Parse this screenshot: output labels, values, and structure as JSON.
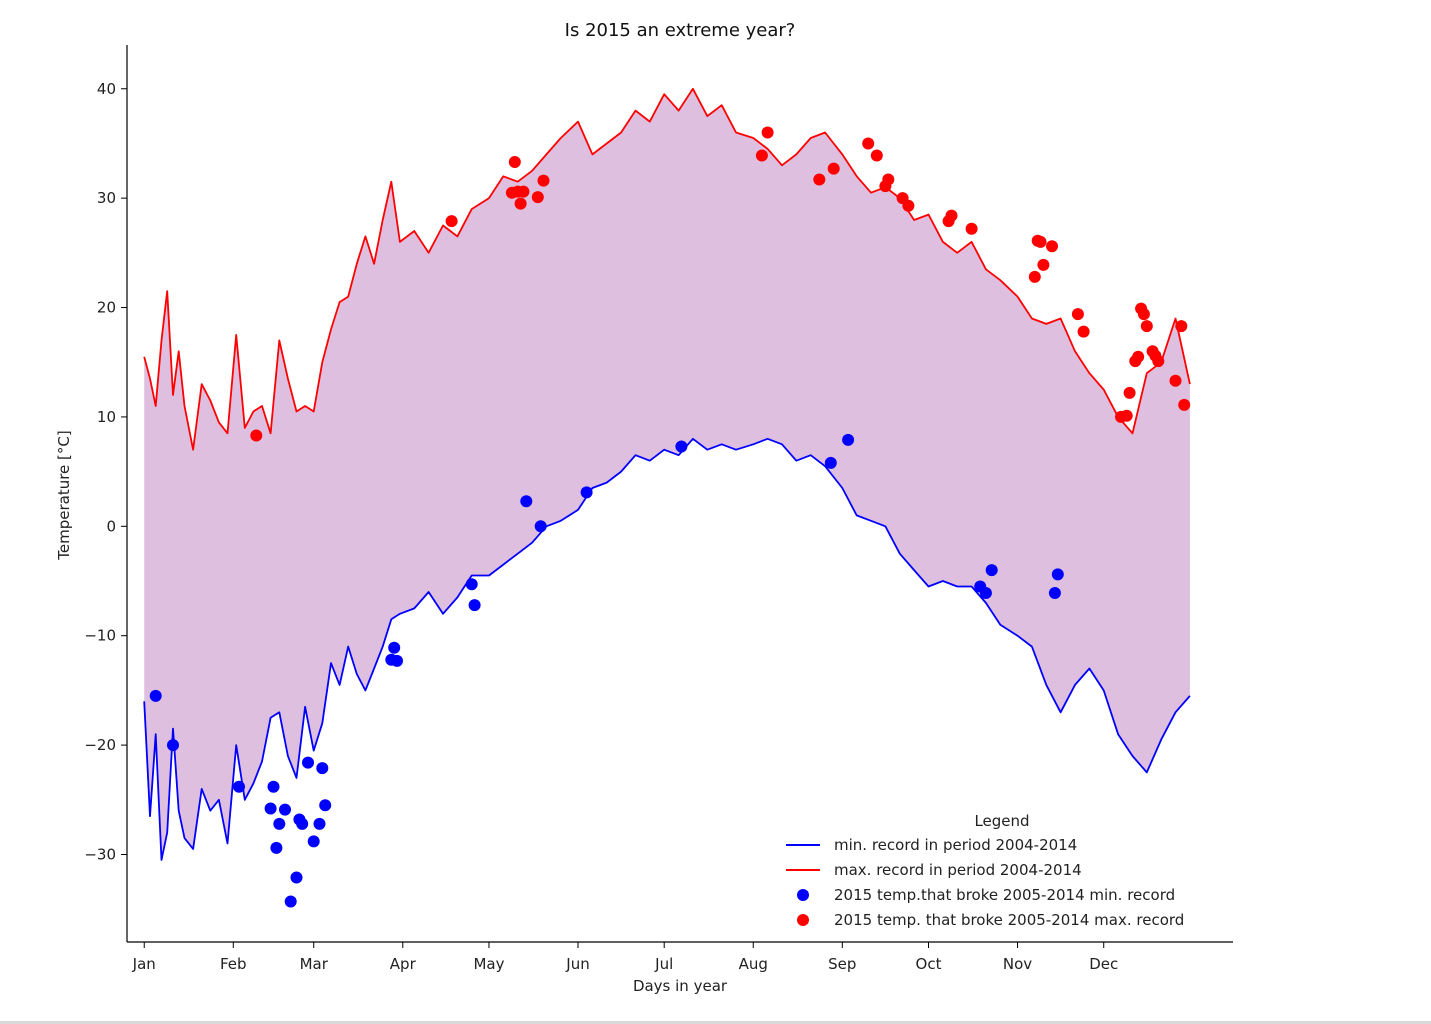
{
  "chart_data": {
    "type": "line",
    "title": "Is 2015 an extreme year?",
    "xlabel": "Days in year",
    "ylabel": "Temperature [°C]",
    "xlim": [
      -5,
      380
    ],
    "ylim": [
      -38,
      44
    ],
    "yticks": [
      -30,
      -20,
      -10,
      0,
      10,
      20,
      30,
      40
    ],
    "xticks": [
      {
        "label": "Jan",
        "day": 1
      },
      {
        "label": "Feb",
        "day": 32
      },
      {
        "label": "Mar",
        "day": 60
      },
      {
        "label": "Apr",
        "day": 91
      },
      {
        "label": "May",
        "day": 121
      },
      {
        "label": "Jun",
        "day": 152
      },
      {
        "label": "Jul",
        "day": 182
      },
      {
        "label": "Aug",
        "day": 213
      },
      {
        "label": "Sep",
        "day": 244
      },
      {
        "label": "Oct",
        "day": 274
      },
      {
        "label": "Nov",
        "day": 305
      },
      {
        "label": "Dec",
        "day": 335
      }
    ],
    "grid": false,
    "fill_between_color": "#dfbfdf",
    "legend": {
      "title": "Legend",
      "placement": "lower-right",
      "entries": [
        {
          "label": "min. record in period 2004-2014",
          "marker": "line",
          "color": "#0000ff"
        },
        {
          "label": "max. record in period 2004-2014",
          "marker": "line",
          "color": "#ff0000"
        },
        {
          "label": "2015 temp.that broke 2005-2014 min. record",
          "marker": "dot",
          "color": "#0000ff"
        },
        {
          "label": "2015 temp. that broke 2005-2014 max. record",
          "marker": "dot",
          "color": "#ff0000"
        }
      ]
    },
    "series": [
      {
        "name": "min. record in period 2004-2014",
        "color": "#0000ff",
        "x": [
          1,
          3,
          5,
          7,
          9,
          11,
          13,
          15,
          18,
          21,
          24,
          27,
          30,
          33,
          36,
          39,
          42,
          45,
          48,
          51,
          54,
          57,
          60,
          63,
          66,
          69,
          72,
          75,
          78,
          81,
          84,
          87,
          90,
          95,
          100,
          105,
          110,
          115,
          121,
          126,
          131,
          136,
          141,
          146,
          152,
          157,
          162,
          167,
          172,
          177,
          182,
          187,
          192,
          197,
          202,
          207,
          213,
          218,
          223,
          228,
          233,
          238,
          244,
          249,
          254,
          259,
          264,
          269,
          274,
          279,
          284,
          289,
          294,
          299,
          305,
          310,
          315,
          320,
          325,
          330,
          335,
          340,
          345,
          350,
          355,
          360,
          365
        ],
        "y": [
          -16,
          -26.5,
          -19,
          -30.5,
          -28,
          -18.5,
          -26,
          -28.5,
          -29.5,
          -24,
          -26,
          -25,
          -29,
          -20,
          -25,
          -23.5,
          -21.5,
          -17.5,
          -17,
          -21,
          -23,
          -16.5,
          -20.5,
          -18,
          -12.5,
          -14.5,
          -11,
          -13.5,
          -15,
          -13,
          -11,
          -8.5,
          -8,
          -7.5,
          -6,
          -8,
          -6.5,
          -4.5,
          -4.5,
          -3.5,
          -2.5,
          -1.5,
          0,
          0.5,
          1.5,
          3.5,
          4,
          5,
          6.5,
          6,
          7,
          6.5,
          8,
          7,
          7.5,
          7,
          7.5,
          8,
          7.5,
          6,
          6.5,
          5.5,
          3.5,
          1,
          0.5,
          0,
          -2.5,
          -4,
          -5.5,
          -5,
          -5.5,
          -5.5,
          -7,
          -9,
          -10,
          -11,
          -14.5,
          -17,
          -14.5,
          -13,
          -15,
          -19,
          -21,
          -22.5,
          -19.5,
          -17,
          -15.5
        ]
      },
      {
        "name": "max. record in period 2004-2014",
        "color": "#ff0000",
        "x": [
          1,
          3,
          5,
          7,
          9,
          11,
          13,
          15,
          18,
          21,
          24,
          27,
          30,
          33,
          36,
          39,
          42,
          45,
          48,
          51,
          54,
          57,
          60,
          63,
          66,
          69,
          72,
          75,
          78,
          81,
          84,
          87,
          90,
          95,
          100,
          105,
          110,
          115,
          121,
          126,
          131,
          136,
          141,
          146,
          152,
          157,
          162,
          167,
          172,
          177,
          182,
          187,
          192,
          197,
          202,
          207,
          213,
          218,
          223,
          228,
          233,
          238,
          244,
          249,
          254,
          259,
          264,
          269,
          274,
          279,
          284,
          289,
          294,
          299,
          305,
          310,
          315,
          320,
          325,
          330,
          335,
          340,
          345,
          350,
          355,
          360,
          365
        ],
        "y": [
          15.5,
          13.5,
          11,
          17,
          21.5,
          12,
          16,
          11,
          7,
          13,
          11.5,
          9.5,
          8.5,
          17.5,
          9,
          10.5,
          11,
          8.5,
          17,
          13.5,
          10.5,
          11,
          10.5,
          15,
          18,
          20.5,
          21,
          24,
          26.5,
          24,
          28,
          31.5,
          26,
          27,
          25,
          27.5,
          26.5,
          29,
          30,
          32,
          31.5,
          32.5,
          34,
          35.5,
          37,
          34,
          35,
          36,
          38,
          37,
          39.5,
          38,
          40,
          37.5,
          38.5,
          36,
          35.5,
          34.5,
          33,
          34,
          35.5,
          36,
          34,
          32,
          30.5,
          31,
          30,
          28,
          28.5,
          26,
          25,
          26,
          23.5,
          22.5,
          21,
          19,
          18.5,
          19,
          16,
          14,
          12.5,
          10,
          8.5,
          14,
          15,
          19,
          13
        ]
      }
    ],
    "scatter_series": [
      {
        "name": "2015 temp.that broke 2005-2014 min. record",
        "color": "#0000ff",
        "x": [
          5,
          11,
          34,
          45,
          46,
          47,
          48,
          50,
          52,
          54,
          55,
          56,
          58,
          60,
          62,
          63,
          64,
          87,
          88,
          89,
          115,
          116,
          134,
          139,
          155,
          188,
          240,
          246,
          292,
          294,
          296,
          318,
          319
        ],
        "y": [
          -15.5,
          -20,
          -23.8,
          -25.8,
          -23.8,
          -29.4,
          -27.2,
          -25.9,
          -34.3,
          -32.1,
          -26.8,
          -27.2,
          -21.6,
          -28.8,
          -27.2,
          -22.1,
          -25.5,
          -12.2,
          -11.1,
          -12.3,
          -5.3,
          -7.2,
          2.3,
          0,
          3.1,
          7.3,
          5.8,
          7.9,
          -5.5,
          -6.1,
          -4,
          -6.1,
          -4.4
        ]
      },
      {
        "name": "2015 temp. that broke 2005-2014 max. record",
        "color": "#ff0000",
        "x": [
          40,
          108,
          129,
          130,
          131,
          132,
          133,
          138,
          140,
          216,
          218,
          236,
          241,
          253,
          256,
          259,
          260,
          265,
          267,
          281,
          282,
          289,
          311,
          312,
          313,
          314,
          317,
          326,
          328,
          341,
          343,
          344,
          346,
          347,
          348,
          349,
          350,
          352,
          353,
          354,
          360,
          362,
          363
        ],
        "y": [
          8.3,
          27.9,
          30.5,
          33.3,
          30.6,
          29.5,
          30.6,
          30.1,
          31.6,
          33.9,
          36,
          31.7,
          32.7,
          35,
          33.9,
          31.1,
          31.7,
          30,
          29.3,
          27.9,
          28.4,
          27.2,
          22.8,
          26.1,
          26,
          23.9,
          25.6,
          19.4,
          17.8,
          10,
          10.1,
          12.2,
          15.1,
          15.5,
          19.9,
          19.4,
          18.3,
          16,
          15.6,
          15.1,
          13.3,
          18.3,
          11.1
        ]
      }
    ]
  }
}
